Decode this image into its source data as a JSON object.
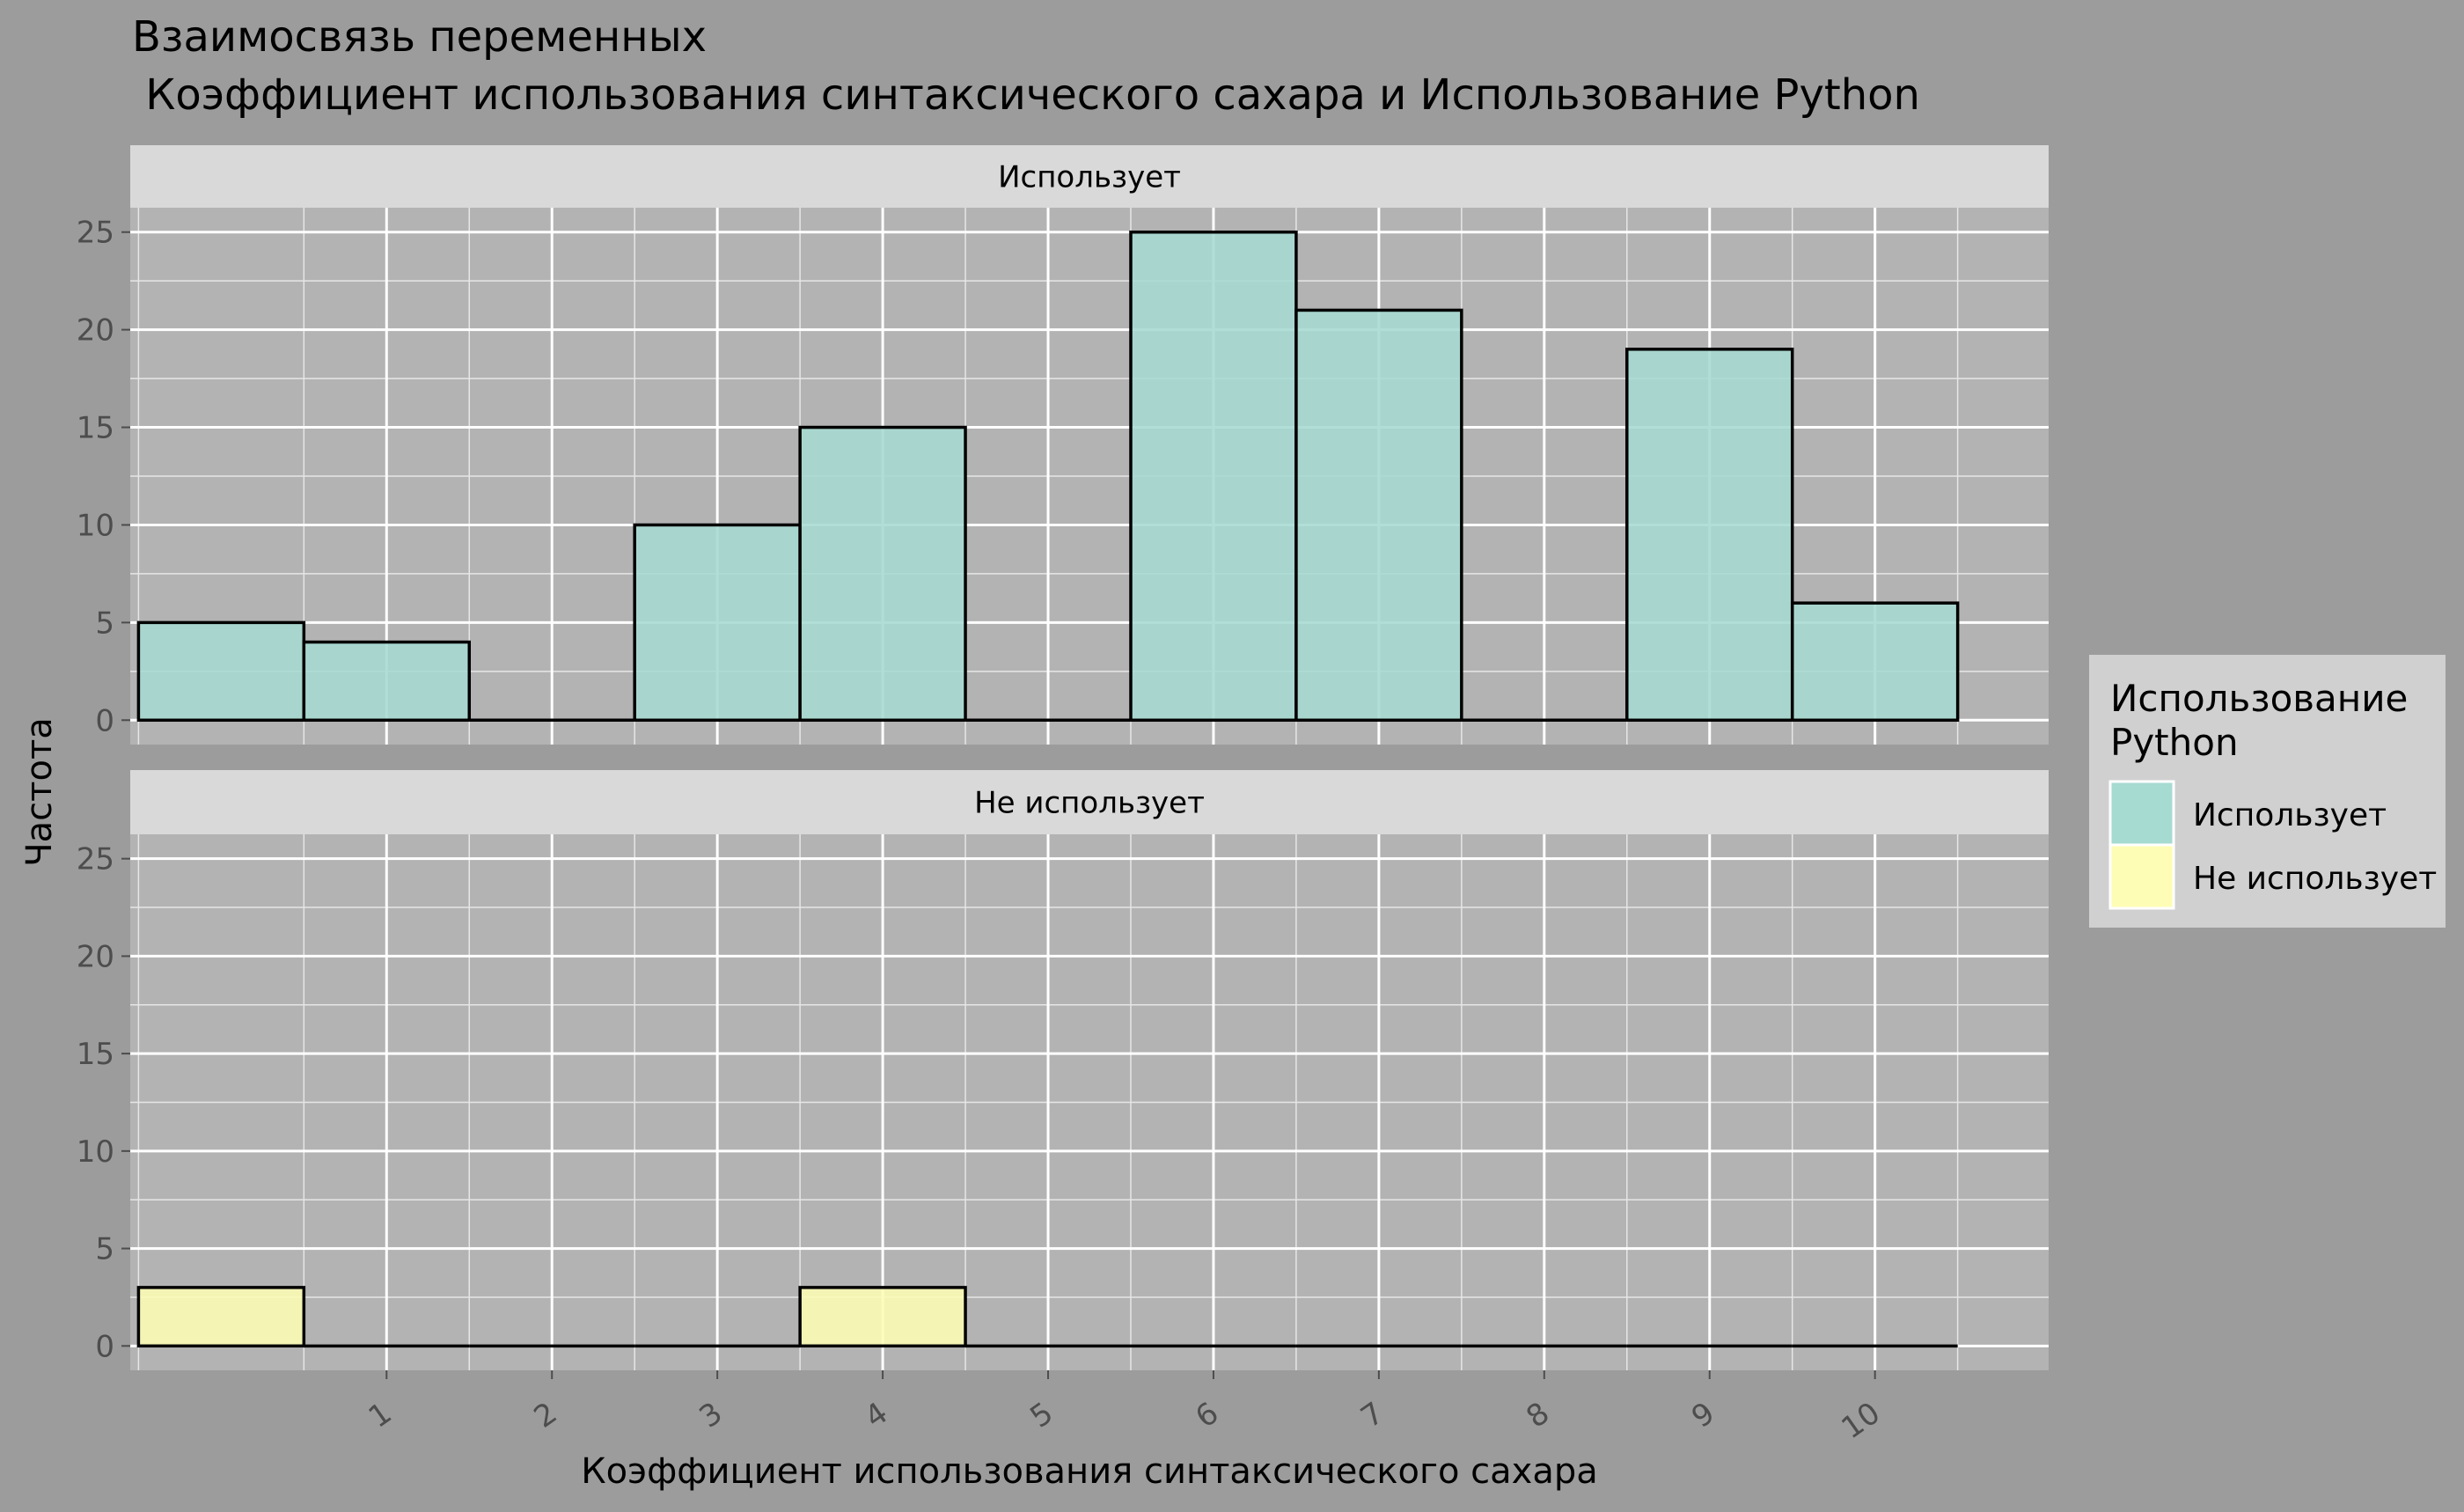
{
  "chart_data": {
    "type": "bar",
    "title_line1": "Взаимосвязь переменных",
    "title_line2": " Коэффициент использования синтаксического сахара и Использование Python",
    "xlabel": "Коэффициент использования синтаксического сахара",
    "ylabel": "Частота",
    "x_ticks": [
      "1",
      "2",
      "3",
      "4",
      "5",
      "6",
      "7",
      "8",
      "9",
      "10"
    ],
    "ylim": [
      0,
      25
    ],
    "y_ticks": [
      "0",
      "5",
      "10",
      "15",
      "20",
      "25"
    ],
    "grid": true,
    "bin_centers": [
      0,
      1,
      2,
      3,
      4,
      5,
      6,
      7,
      8,
      9,
      10
    ],
    "facets": [
      {
        "strip": "Использует",
        "fill": "#a6dbd1",
        "values": [
          5,
          4,
          0,
          10,
          15,
          0,
          25,
          21,
          0,
          19,
          6
        ]
      },
      {
        "strip": "Не использует",
        "fill": "#fdfdb5",
        "values": [
          3,
          0,
          0,
          0,
          3,
          0,
          0,
          0,
          0,
          0,
          0
        ]
      }
    ],
    "legend": {
      "title_line1": "Использование",
      "title_line2": "Python",
      "position": "right",
      "items": [
        {
          "label": "Использует",
          "color": "#a6dbd1"
        },
        {
          "label": "Не использует",
          "color": "#fdfdb5"
        }
      ]
    }
  }
}
